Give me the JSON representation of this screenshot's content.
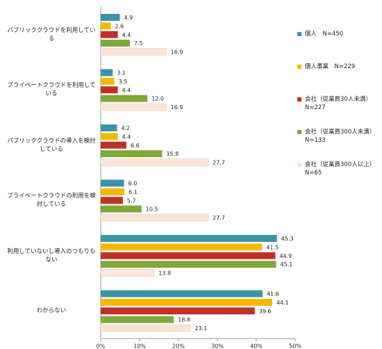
{
  "chart_data": {
    "type": "hbar",
    "categories": [
      "パブリッククラウドを利用している",
      "プライベートクラウドを利用している",
      "パブリッククラウドの導入を検討している",
      "プライベートクラウドの利用を検討している",
      "利用していないし導入のつもりもない",
      "わからない"
    ],
    "series": [
      {
        "name": "個人　N=450",
        "color": "#3a94a8",
        "values": [
          4.9,
          3.1,
          4.2,
          6.0,
          45.3,
          41.6
        ],
        "value_labels": [
          "4.9",
          "3.1",
          "4.2",
          "6.0",
          "45.3",
          "41.6"
        ]
      },
      {
        "name": "個人事業　N=229",
        "color": "#f5b800",
        "values": [
          2.6,
          3.5,
          4.4,
          6.1,
          41.5,
          44.1
        ],
        "value_labels": [
          "2.6",
          "3.5",
          "4.4",
          "6.1",
          "41.5",
          "44.1"
        ]
      },
      {
        "name": "会社（従業員30人未満） N=227",
        "color": "#c0302a",
        "values": [
          4.4,
          4.4,
          6.6,
          5.7,
          44.9,
          39.6
        ],
        "value_labels": [
          "4.4",
          "4.4",
          "6.6",
          "5.7",
          "44.9",
          "39.6"
        ]
      },
      {
        "name": "会社（従業員300人未満） N=133",
        "color": "#7fa83a",
        "values": [
          7.5,
          12.0,
          15.8,
          10.5,
          45.1,
          18.8
        ],
        "value_labels": [
          "7.5",
          "12.0",
          "15.8",
          "10.5",
          "45.1",
          "18.8"
        ]
      },
      {
        "name": "会社（従業員300人以上） N=65",
        "color": "#fde4d8",
        "values": [
          16.9,
          16.9,
          27.7,
          27.7,
          13.8,
          23.1
        ],
        "value_labels": [
          "16.9",
          "16.9",
          "27.7",
          "27.7",
          "13.8",
          "23.1"
        ]
      }
    ],
    "xlim": [
      0,
      50
    ],
    "xticks": [
      {
        "value": 0,
        "label": "0%"
      },
      {
        "value": 10,
        "label": "10%"
      },
      {
        "value": 20,
        "label": "20%"
      },
      {
        "value": 30,
        "label": "30%"
      },
      {
        "value": 40,
        "label": "40%"
      },
      {
        "value": 50,
        "label": "50%"
      }
    ]
  }
}
